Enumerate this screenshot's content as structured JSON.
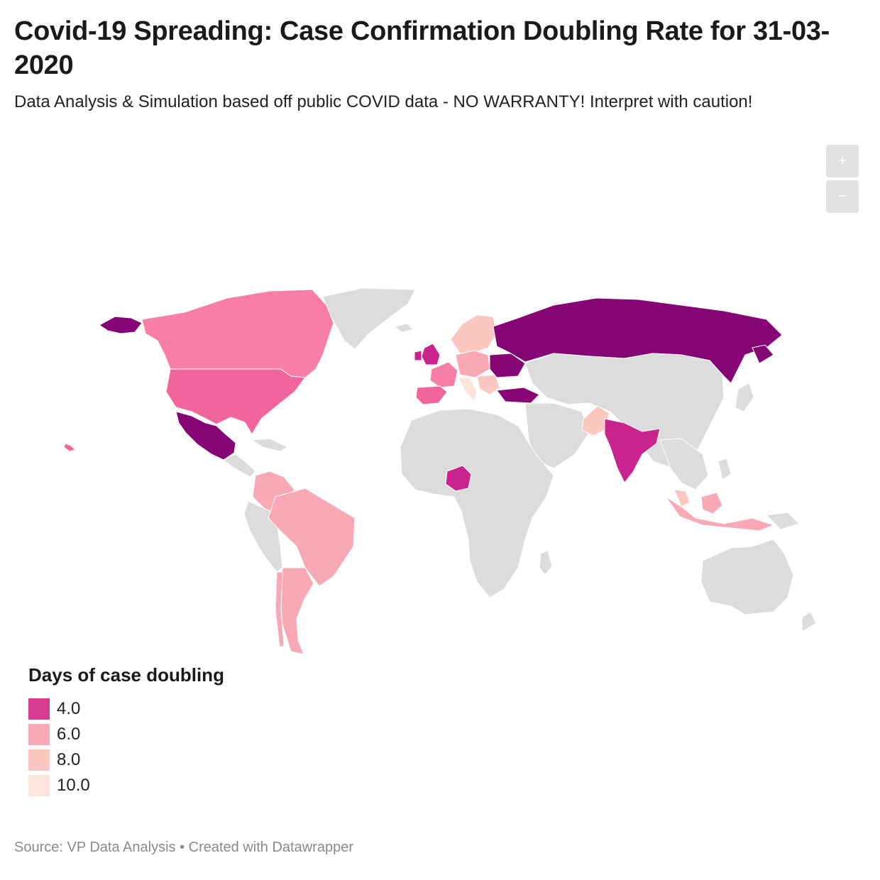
{
  "header": {
    "title": "Covid-19 Spreading: Case Confirmation Doubling Rate for 31-03-2020",
    "subtitle": "Data Analysis & Simulation based off public COVID data - NO WARRANTY! Interpret with caution!"
  },
  "zoom": {
    "in_label": "+",
    "out_label": "−"
  },
  "colors": {
    "no_data": "#dcdcdc",
    "darkest": "#860575",
    "dark": "#c9248e",
    "mid_dark": "#f2659c",
    "mid": "#f67ea7",
    "light": "#f9a8b6",
    "lighter": "#fcc6c1",
    "lightest": "#fde5dc",
    "border": "#ffffff"
  },
  "legend": {
    "title": "Days of case doubling",
    "items": [
      {
        "label": "4.0",
        "color": "#d63b8f"
      },
      {
        "label": "6.0",
        "color": "#f9a8b6"
      },
      {
        "label": "8.0",
        "color": "#fcc6c1"
      },
      {
        "label": "10.0",
        "color": "#fde5dc"
      }
    ]
  },
  "footer": {
    "text": "Source: VP Data Analysis • Created with Datawrapper"
  }
}
